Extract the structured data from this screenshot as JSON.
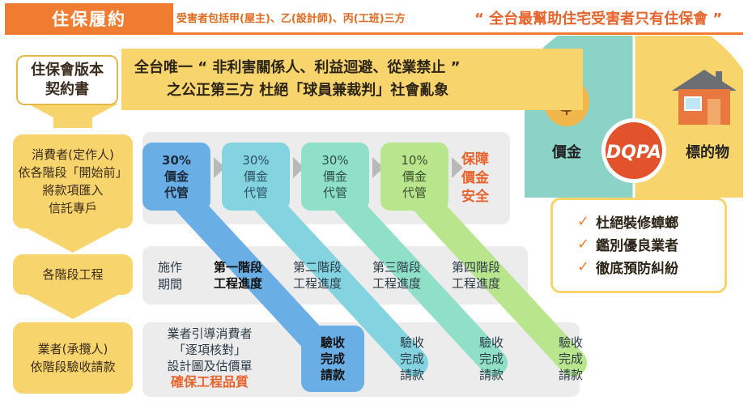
{
  "header": {
    "title": "住保履約",
    "subtitle": "受害者包括甲(屋主)、乙(設計師)、丙(工班)三方",
    "slogan": "“ 全台最幫助住宅受害者只有住保會 ”"
  },
  "contract": {
    "line1": "住保會版本",
    "line2": "契約書"
  },
  "banner": {
    "line1": "全台唯一 “ 非利害關係人、利益迴避、從業禁止 ”",
    "line2": "之公正第三方  杜絕「球員兼裁判」社會亂象"
  },
  "left_flow": [
    {
      "lines": [
        "消費者(定作人)",
        "依各階段「開始前」",
        "將款項匯入",
        "信託專戶"
      ]
    },
    {
      "lines": [
        "各階段工程"
      ]
    },
    {
      "lines": [
        "業者(承攬人)",
        "依階段驗收請款"
      ]
    }
  ],
  "escrow": {
    "boxes": [
      {
        "pct": "30%",
        "l1": "價金",
        "l2": "代管",
        "color": "#6aaee6",
        "text": "#1a2a3a",
        "bold": true
      },
      {
        "pct": "30%",
        "l1": "價金",
        "l2": "代管",
        "color": "#83d4e0",
        "text": "#2c4f5e",
        "bold": false
      },
      {
        "pct": "30%",
        "l1": "價金",
        "l2": "代管",
        "color": "#8fe0c7",
        "text": "#2c4f46",
        "bold": false
      },
      {
        "pct": "10%",
        "l1": "價金",
        "l2": "代管",
        "color": "#b9e58d",
        "text": "#3a4f2a",
        "bold": false
      }
    ],
    "guarantee": [
      "保障",
      "價金",
      "安全"
    ]
  },
  "stages": {
    "intro": [
      "施作",
      "期間"
    ],
    "items": [
      {
        "l1": "第一階段",
        "l2": "工程進度",
        "color": "#6aaee6",
        "bold": true
      },
      {
        "l1": "第二階段",
        "l2": "工程進度",
        "color": "#83d4e0",
        "bold": false
      },
      {
        "l1": "第三階段",
        "l2": "工程進度",
        "color": "#8fe0c7",
        "bold": false
      },
      {
        "l1": "第四階段",
        "l2": "工程進度",
        "color": "#b9e58d",
        "bold": false
      }
    ]
  },
  "acceptance": {
    "intro": [
      "業者引導消費者",
      "「逐項核對」",
      "設計圖及估價單"
    ],
    "quality": "確保工程品質",
    "items": [
      {
        "l1": "驗收",
        "l2": "完成",
        "l3": "請款",
        "color": "#6aaee6",
        "bold": true
      },
      {
        "l1": "驗收",
        "l2": "完成",
        "l3": "請款",
        "color": "#83d4e0",
        "bold": false
      },
      {
        "l1": "驗收",
        "l2": "完成",
        "l3": "請款",
        "color": "#8fe0c7",
        "bold": false
      },
      {
        "l1": "驗收",
        "l2": "完成",
        "l3": "請款",
        "color": "#b9e58d",
        "bold": false
      }
    ]
  },
  "circle": {
    "left_label": "價金",
    "right_label": "標的物",
    "logo": "DQPA",
    "colors": {
      "left": "#8bd3c7",
      "right": "#f8d56c",
      "logo": "#e2522b"
    }
  },
  "benefits": [
    "杜絕裝修蟑螂",
    "鑑別優良業者",
    "徹底預防糾紛"
  ],
  "icons": {
    "check": "✓"
  }
}
